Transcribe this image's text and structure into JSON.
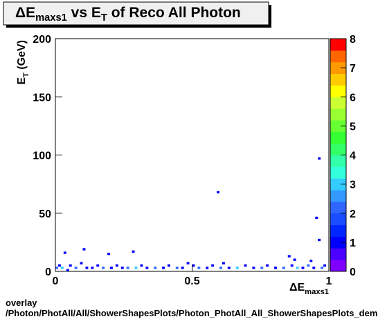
{
  "chart_data": {
    "type": "heatmap",
    "title": [
      "ΔE",
      "maxs1",
      " vs E",
      "T",
      " of Reco All Photon"
    ],
    "xlabel": [
      "ΔE",
      "maxs1"
    ],
    "ylabel": [
      "E",
      "T",
      " (GeV)"
    ],
    "footer": [
      "overlay",
      "/Photon/PhotAll/All/ShowerShapesPlots/Photon_PhotAll_All_ShowerShapesPlots_dem"
    ],
    "xlim": [
      0,
      1
    ],
    "xticks": [
      0,
      0.5,
      1
    ],
    "ylim": [
      0,
      200
    ],
    "yticks": [
      0,
      50,
      100,
      150,
      200
    ],
    "zlim": [
      0,
      8
    ],
    "zticks": [
      0,
      1,
      2,
      3,
      4,
      5,
      6,
      7,
      8
    ],
    "palette": [
      "#7f00ff",
      "#4c00ff",
      "#0000ff",
      "#0026ff",
      "#1a4dff",
      "#2e66ff",
      "#3399ff",
      "#33ccff",
      "#33ffdd",
      "#33ffaa",
      "#33ff66",
      "#33ff33",
      "#66ff33",
      "#99ff33",
      "#ccff33",
      "#ffff00",
      "#ffcc00",
      "#ff9900",
      "#ff6600",
      "#ff0000"
    ],
    "x": [
      0.1,
      0.03,
      0.19,
      0.28,
      0.59,
      0.96,
      0.95,
      0.96,
      0.87,
      0.85,
      0.93,
      0.61,
      0.48,
      0.0,
      0.01,
      0.02,
      0.04,
      0.05,
      0.07,
      0.09,
      0.11,
      0.13,
      0.15,
      0.17,
      0.2,
      0.22,
      0.24,
      0.26,
      0.29,
      0.31,
      0.33,
      0.36,
      0.39,
      0.41,
      0.44,
      0.46,
      0.5,
      0.52,
      0.55,
      0.57,
      0.6,
      0.63,
      0.66,
      0.69,
      0.72,
      0.75,
      0.77,
      0.8,
      0.83,
      0.86,
      0.88,
      0.9,
      0.92,
      0.94,
      0.97,
      0.98
    ],
    "y": [
      18,
      15,
      14,
      16,
      67,
      96,
      45,
      26,
      9,
      12,
      8,
      6,
      6,
      2,
      4,
      2,
      0,
      4,
      2,
      6,
      2,
      2,
      4,
      2,
      2,
      4,
      2,
      2,
      2,
      4,
      2,
      2,
      2,
      4,
      2,
      2,
      4,
      2,
      2,
      4,
      2,
      2,
      2,
      4,
      2,
      2,
      4,
      2,
      2,
      4,
      2,
      2,
      4,
      2,
      2,
      4
    ],
    "values": [
      1,
      1,
      1,
      1,
      1,
      1,
      1,
      1,
      1,
      1,
      1,
      1,
      1,
      2,
      1,
      3,
      1,
      1,
      2,
      1,
      1,
      1,
      1,
      2,
      1,
      1,
      1,
      2,
      3,
      1,
      1,
      2,
      1,
      1,
      2,
      1,
      1,
      2,
      1,
      1,
      2,
      1,
      3,
      1,
      1,
      2,
      1,
      1,
      2,
      1,
      3,
      1,
      2,
      1,
      2,
      1
    ]
  }
}
